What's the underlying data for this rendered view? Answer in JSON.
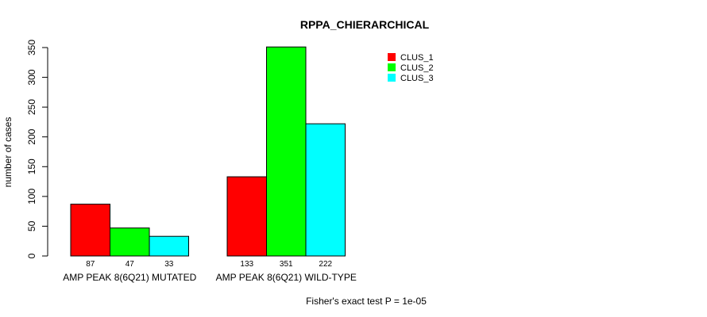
{
  "chart_data": {
    "type": "bar",
    "title": "RPPA_CHIERARCHICAL",
    "xlabel": "",
    "ylabel": "number of cases",
    "ylim": [
      0,
      350
    ],
    "yticks": [
      "0",
      "50",
      "100",
      "150",
      "200",
      "250",
      "300",
      "350"
    ],
    "categories": [
      "AMP PEAK  8(6Q21) MUTATED",
      "AMP PEAK  8(6Q21) WILD-TYPE"
    ],
    "series": [
      {
        "name": "CLUS_1",
        "color": "#ff0000",
        "values": [
          87,
          133
        ]
      },
      {
        "name": "CLUS_2",
        "color": "#00ff00",
        "values": [
          47,
          351
        ]
      },
      {
        "name": "CLUS_3",
        "color": "#00ffff",
        "values": [
          33,
          222
        ]
      }
    ],
    "bar_value_labels": [
      [
        "87",
        "47",
        "33"
      ],
      [
        "133",
        "351",
        "222"
      ]
    ],
    "legend_position": "top-right",
    "grid": false,
    "footnote": "Fisher's exact test P = 1e-05"
  }
}
